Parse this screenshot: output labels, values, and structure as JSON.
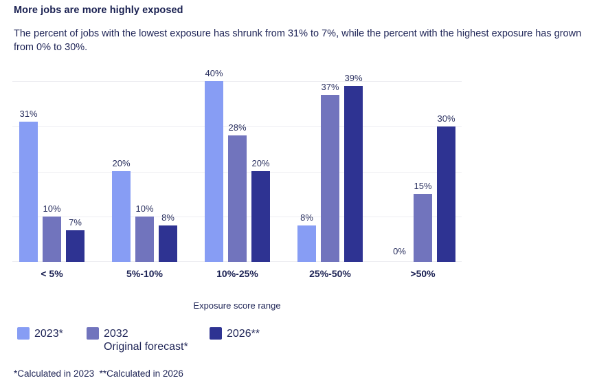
{
  "header": {
    "title": "More jobs are more highly exposed",
    "subtitle": "The percent of jobs with the lowest exposure has shrunk from 31% to 7%, while the percent with the highest exposure has grown from 0% to 30%."
  },
  "chart_data": {
    "type": "bar",
    "title": "More jobs are more highly exposed",
    "categories": [
      "< 5%",
      "5%-10%",
      "10%-25%",
      "25%-50%",
      ">50%"
    ],
    "series": [
      {
        "name": "2023*",
        "color": "#879df4",
        "values": [
          31,
          20,
          40,
          8,
          0
        ]
      },
      {
        "name": "2032 Original forecast*",
        "color": "#7174bd",
        "values": [
          10,
          10,
          28,
          37,
          15
        ]
      },
      {
        "name": "2026**",
        "color": "#2e3392",
        "values": [
          7,
          8,
          20,
          39,
          30
        ]
      }
    ],
    "xlabel": "Exposure score range",
    "ylabel": "",
    "ylim": [
      0,
      40
    ],
    "gridlines": [
      0,
      10,
      20,
      30,
      40
    ],
    "grid": true,
    "value_label_suffix": "%",
    "legend_position": "bottom-left"
  },
  "legend": {
    "items": [
      {
        "label": "2023*",
        "sublabel": "",
        "color": "#879df4"
      },
      {
        "label": "2032",
        "sublabel": "Original forecast*",
        "color": "#7174bd"
      },
      {
        "label": "2026**",
        "sublabel": "",
        "color": "#2e3392"
      }
    ]
  },
  "footnote": {
    "text": "*Calculated in 2023  **Calculated in 2026"
  },
  "colors": {
    "background": "#ffffff",
    "text": "#1e2456",
    "grid": "#ededf1",
    "series_light": "#879df4",
    "series_medium": "#7174bd",
    "series_dark": "#2e3392"
  }
}
